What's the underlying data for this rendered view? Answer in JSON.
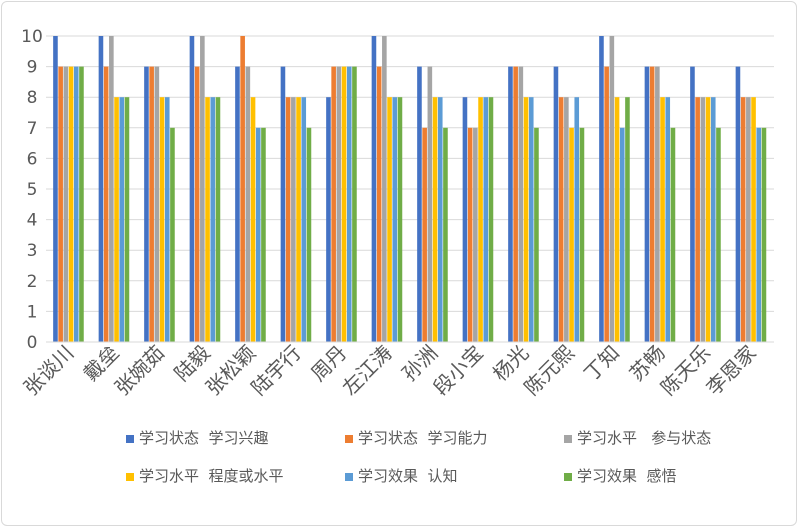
{
  "chart_data": {
    "type": "bar",
    "title": "",
    "xlabel": "",
    "ylabel": "",
    "ylim": [
      0,
      10
    ],
    "yticks": [
      0,
      1,
      2,
      3,
      4,
      5,
      6,
      7,
      8,
      9,
      10
    ],
    "grid": true,
    "legend_position": "bottom",
    "categories": [
      "张谈川",
      "戴垒",
      "张婉茹",
      "陆毅",
      "张松颖",
      "陆宇行",
      "周丹",
      "左江涛",
      "孙洲",
      "段小宝",
      "杨光",
      "陈元熙",
      "丁知",
      "苏畅",
      "陈天乐",
      "李恩家"
    ],
    "series": [
      {
        "name": "学习状态  学习兴趣",
        "color": "#4472C4",
        "values": [
          10,
          10,
          9,
          10,
          9,
          9,
          8,
          10,
          9,
          8,
          9,
          9,
          10,
          9,
          9,
          9
        ]
      },
      {
        "name": "学习状态  学习能力",
        "color": "#ED7D31",
        "values": [
          9,
          9,
          9,
          9,
          10,
          8,
          9,
          9,
          7,
          7,
          9,
          8,
          9,
          9,
          8,
          8
        ]
      },
      {
        "name": "学习水平   参与状态",
        "color": "#A5A5A5",
        "values": [
          9,
          10,
          9,
          10,
          9,
          8,
          9,
          10,
          9,
          7,
          9,
          8,
          10,
          9,
          8,
          8
        ]
      },
      {
        "name": "学习水平  程度或水平",
        "color": "#FFC000",
        "values": [
          9,
          8,
          8,
          8,
          8,
          8,
          9,
          8,
          8,
          8,
          8,
          7,
          8,
          8,
          8,
          8
        ]
      },
      {
        "name": "学习效果  认知",
        "color": "#5B9BD5",
        "values": [
          9,
          8,
          8,
          8,
          7,
          8,
          9,
          8,
          8,
          8,
          8,
          8,
          7,
          8,
          8,
          7
        ]
      },
      {
        "name": "学习效果  感悟",
        "color": "#70AD47",
        "values": [
          9,
          8,
          7,
          8,
          7,
          7,
          9,
          8,
          7,
          8,
          7,
          7,
          8,
          7,
          7,
          7
        ]
      }
    ]
  }
}
